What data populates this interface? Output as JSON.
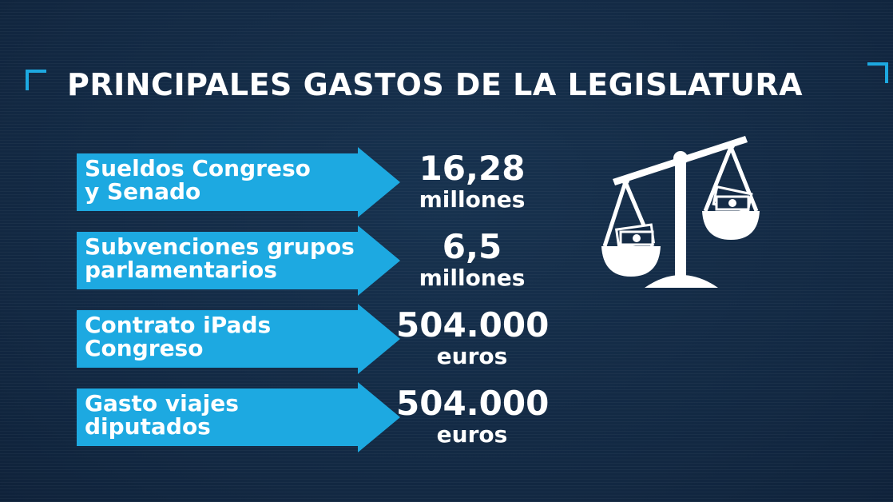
{
  "title": "PRINCIPALES GASTOS DE LA LEGISLATURA",
  "items": [
    {
      "label": "Sueldos Congreso\ny Senado",
      "value": "16,28",
      "unit": "millones"
    },
    {
      "label": "Subvenciones grupos\nparlamentarios",
      "value": "6,5",
      "unit": "millones"
    },
    {
      "label": "Contrato iPads\nCongreso",
      "value": "504.000",
      "unit": "euros"
    },
    {
      "label": "Gasto viajes\ndiputados",
      "value": "504.000",
      "unit": "euros"
    }
  ],
  "colors": {
    "accent": "#1da9e1",
    "background": "#142b46",
    "text": "#ffffff"
  },
  "icons": {
    "corners": "corner-bracket-icon",
    "scale": "balance-scale-icon"
  }
}
